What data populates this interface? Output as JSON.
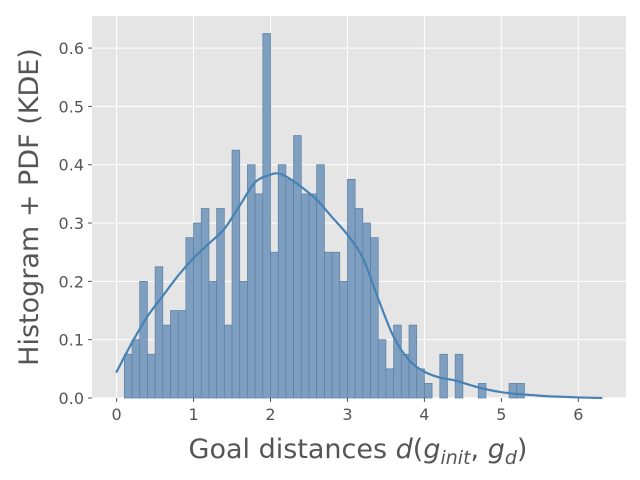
{
  "chart_data": {
    "type": "bar",
    "title": "",
    "xlabel": {
      "prefix": "Goal distances ",
      "d": "d",
      "open": "(",
      "g1": "g",
      "sub1": "init",
      "comma": ", ",
      "g2": "g",
      "sub2": "d",
      "close": ")"
    },
    "ylabel": "Histogram + PDF (KDE)",
    "xlim": [
      -0.32,
      6.62
    ],
    "ylim": [
      0,
      0.655
    ],
    "xticks": [
      0,
      1,
      2,
      3,
      4,
      5,
      6
    ],
    "yticks": [
      0.0,
      0.1,
      0.2,
      0.3,
      0.4,
      0.5,
      0.6
    ],
    "ytick_labels": [
      "0.0",
      "0.1",
      "0.2",
      "0.3",
      "0.4",
      "0.5",
      "0.6"
    ],
    "grid": true,
    "bar_width": 0.1,
    "histogram": {
      "bin_starts": [
        0.1,
        0.2,
        0.3,
        0.4,
        0.5,
        0.6,
        0.7,
        0.8,
        0.9,
        1.0,
        1.1,
        1.2,
        1.3,
        1.4,
        1.5,
        1.6,
        1.7,
        1.8,
        1.9,
        2.0,
        2.1,
        2.2,
        2.3,
        2.4,
        2.5,
        2.6,
        2.7,
        2.8,
        2.9,
        3.0,
        3.1,
        3.2,
        3.3,
        3.4,
        3.5,
        3.6,
        3.7,
        3.8,
        3.9,
        4.0,
        4.1,
        4.2,
        4.3,
        4.4,
        4.5,
        4.6,
        4.7,
        4.8,
        4.9,
        5.0,
        5.1,
        5.2
      ],
      "values": [
        0.075,
        0.1,
        0.2,
        0.075,
        0.225,
        0.125,
        0.15,
        0.15,
        0.275,
        0.3,
        0.325,
        0.2,
        0.325,
        0.125,
        0.425,
        0.2,
        0.4,
        0.35,
        0.625,
        0.25,
        0.4,
        0.375,
        0.45,
        0.35,
        0.35,
        0.4,
        0.25,
        0.25,
        0.2,
        0.375,
        0.325,
        0.3,
        0.275,
        0.1,
        0.05,
        0.125,
        0.075,
        0.125,
        0.05,
        0.025,
        0,
        0.075,
        0,
        0.075,
        0,
        0,
        0.025,
        0,
        0,
        0,
        0.025,
        0.025
      ]
    },
    "kde": {
      "x": [
        0.0,
        0.2,
        0.4,
        0.6,
        0.8,
        1.0,
        1.2,
        1.4,
        1.6,
        1.8,
        2.0,
        2.1,
        2.2,
        2.4,
        2.6,
        2.8,
        3.0,
        3.2,
        3.4,
        3.6,
        3.8,
        4.0,
        4.2,
        4.4,
        4.6,
        4.8,
        5.0,
        5.2,
        5.4,
        5.6,
        5.8,
        6.0,
        6.3
      ],
      "y": [
        0.045,
        0.095,
        0.14,
        0.175,
        0.21,
        0.24,
        0.265,
        0.29,
        0.33,
        0.37,
        0.383,
        0.385,
        0.38,
        0.362,
        0.34,
        0.31,
        0.28,
        0.24,
        0.17,
        0.105,
        0.065,
        0.045,
        0.035,
        0.03,
        0.022,
        0.015,
        0.01,
        0.007,
        0.005,
        0.003,
        0.002,
        0.001,
        0.0
      ]
    },
    "colors": {
      "bar_fill": "#7f9fc0",
      "bar_stroke": "#5c7fa3",
      "kde_line": "#4682b4",
      "plot_bg": "#e5e5e5",
      "grid": "#ffffff"
    }
  }
}
